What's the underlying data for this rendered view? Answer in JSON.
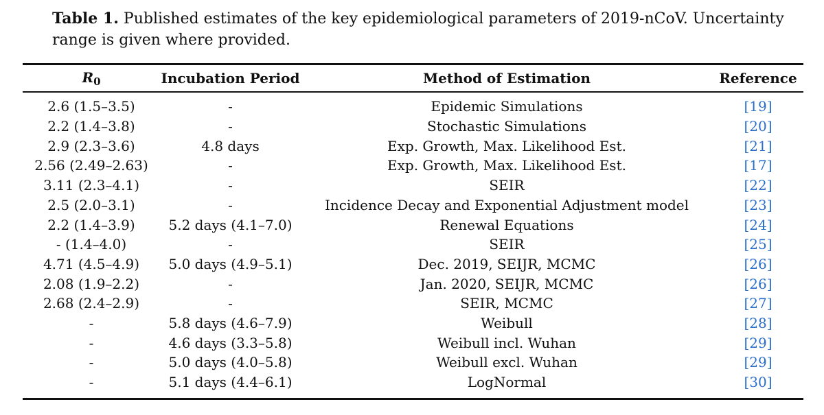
{
  "caption": {
    "label": "Table 1.",
    "text": "Published estimates of the key epidemiological parameters of 2019-nCoV. Uncertainty range is given where provided."
  },
  "table": {
    "headers": {
      "r0_symbol": "R",
      "r0_subscript": "0",
      "incubation": "Incubation Period",
      "method": "Method of Estimation",
      "reference": "Reference"
    },
    "rows": [
      {
        "r0": "2.6 (1.5–3.5)",
        "incubation": "-",
        "method": "Epidemic Simulations",
        "ref": "19"
      },
      {
        "r0": "2.2 (1.4–3.8)",
        "incubation": "-",
        "method": "Stochastic Simulations",
        "ref": "20"
      },
      {
        "r0": "2.9 (2.3–3.6)",
        "incubation": "4.8 days",
        "method": "Exp. Growth, Max. Likelihood Est.",
        "ref": "21"
      },
      {
        "r0": "2.56 (2.49–2.63)",
        "incubation": "-",
        "method": "Exp. Growth, Max. Likelihood Est.",
        "ref": "17"
      },
      {
        "r0": "3.11 (2.3–4.1)",
        "incubation": "-",
        "method": "SEIR",
        "ref": "22"
      },
      {
        "r0": "2.5 (2.0–3.1)",
        "incubation": "-",
        "method": "Incidence Decay and Exponential Adjustment model",
        "ref": "23"
      },
      {
        "r0": "2.2 (1.4–3.9)",
        "incubation": "5.2 days (4.1–7.0)",
        "method": "Renewal Equations",
        "ref": "24"
      },
      {
        "r0": "- (1.4–4.0)",
        "incubation": "-",
        "method": "SEIR",
        "ref": "25"
      },
      {
        "r0": "4.71 (4.5–4.9)",
        "incubation": "5.0 days (4.9–5.1)",
        "method": "Dec. 2019, SEIJR, MCMC",
        "ref": "26"
      },
      {
        "r0": "2.08 (1.9–2.2)",
        "incubation": "-",
        "method": "Jan. 2020, SEIJR, MCMC",
        "ref": "26"
      },
      {
        "r0": "2.68 (2.4–2.9)",
        "incubation": "-",
        "method": "SEIR, MCMC",
        "ref": "27"
      },
      {
        "r0": "-",
        "incubation": "5.8 days (4.6–7.9)",
        "method": "Weibull",
        "ref": "28"
      },
      {
        "r0": "-",
        "incubation": "4.6 days (3.3–5.8)",
        "method": "Weibull incl. Wuhan",
        "ref": "29"
      },
      {
        "r0": "-",
        "incubation": "5.0 days (4.0–5.8)",
        "method": "Weibull excl. Wuhan",
        "ref": "29"
      },
      {
        "r0": "-",
        "incubation": "5.1 days (4.4–6.1)",
        "method": "LogNormal",
        "ref": "30"
      }
    ]
  },
  "colors": {
    "text": "#111111",
    "reference_link": "#2a6fc9",
    "rule": "#111111"
  }
}
